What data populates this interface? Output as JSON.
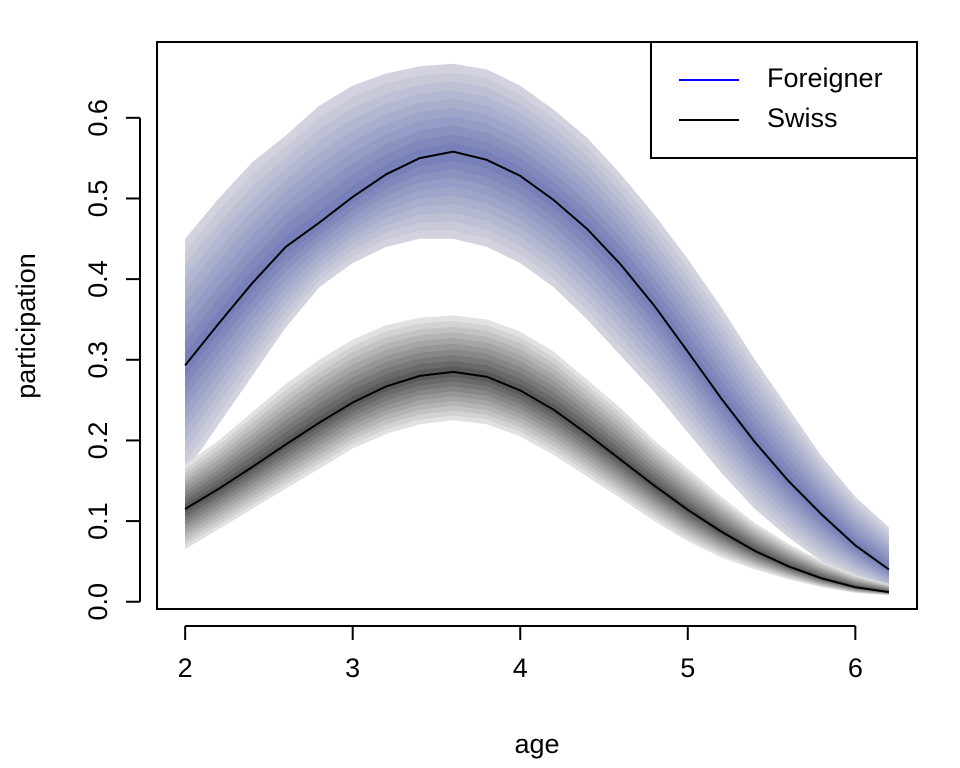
{
  "chart_data": {
    "type": "line",
    "x_label": "age",
    "y_label": "participation",
    "x": [
      2.0,
      2.2,
      2.4,
      2.6,
      2.8,
      3.0,
      3.2,
      3.4,
      3.6,
      3.8,
      4.0,
      4.2,
      4.4,
      4.6,
      4.8,
      5.0,
      5.2,
      5.4,
      5.6,
      5.8,
      6.0,
      6.2
    ],
    "series": [
      {
        "name": "Foreigner",
        "color": "#0000ff",
        "line_color": "#000000",
        "band_color": "#7780b8",
        "band_edge_color": "#dcdce2",
        "values": [
          0.293,
          0.345,
          0.395,
          0.44,
          0.47,
          0.502,
          0.53,
          0.55,
          0.558,
          0.548,
          0.528,
          0.498,
          0.462,
          0.418,
          0.367,
          0.31,
          0.252,
          0.198,
          0.15,
          0.108,
          0.07,
          0.04
        ],
        "upper": [
          0.45,
          0.5,
          0.545,
          0.578,
          0.615,
          0.64,
          0.655,
          0.664,
          0.667,
          0.66,
          0.64,
          0.61,
          0.575,
          0.53,
          0.48,
          0.425,
          0.365,
          0.3,
          0.24,
          0.18,
          0.13,
          0.092
        ],
        "lower": [
          0.16,
          0.22,
          0.28,
          0.34,
          0.39,
          0.42,
          0.44,
          0.45,
          0.45,
          0.44,
          0.42,
          0.39,
          0.35,
          0.305,
          0.26,
          0.21,
          0.16,
          0.115,
          0.08,
          0.05,
          0.03,
          0.015
        ]
      },
      {
        "name": "Swiss",
        "color": "#000000",
        "line_color": "#000000",
        "band_color": "#5a5a5a",
        "band_edge_color": "#f0f0f0",
        "values": [
          0.115,
          0.14,
          0.167,
          0.195,
          0.222,
          0.247,
          0.267,
          0.28,
          0.285,
          0.279,
          0.262,
          0.238,
          0.208,
          0.176,
          0.144,
          0.114,
          0.087,
          0.063,
          0.044,
          0.029,
          0.018,
          0.012
        ],
        "upper": [
          0.17,
          0.2,
          0.235,
          0.27,
          0.3,
          0.325,
          0.343,
          0.352,
          0.355,
          0.35,
          0.335,
          0.31,
          0.275,
          0.24,
          0.2,
          0.165,
          0.13,
          0.098,
          0.072,
          0.05,
          0.033,
          0.022
        ],
        "lower": [
          0.065,
          0.09,
          0.115,
          0.14,
          0.165,
          0.19,
          0.208,
          0.22,
          0.225,
          0.22,
          0.205,
          0.182,
          0.155,
          0.128,
          0.1,
          0.075,
          0.055,
          0.04,
          0.028,
          0.018,
          0.011,
          0.008
        ]
      }
    ],
    "xlim": [
      1.832,
      6.368
    ],
    "ylim": [
      -0.009,
      0.694
    ],
    "xticks": [
      2,
      3,
      4,
      5,
      6
    ],
    "yticks": [
      {
        "value": 0,
        "label": "0.0"
      },
      0.1,
      0.2,
      0.3,
      0.4,
      0.5,
      0.6
    ],
    "legend": "top-right",
    "grid": false
  }
}
